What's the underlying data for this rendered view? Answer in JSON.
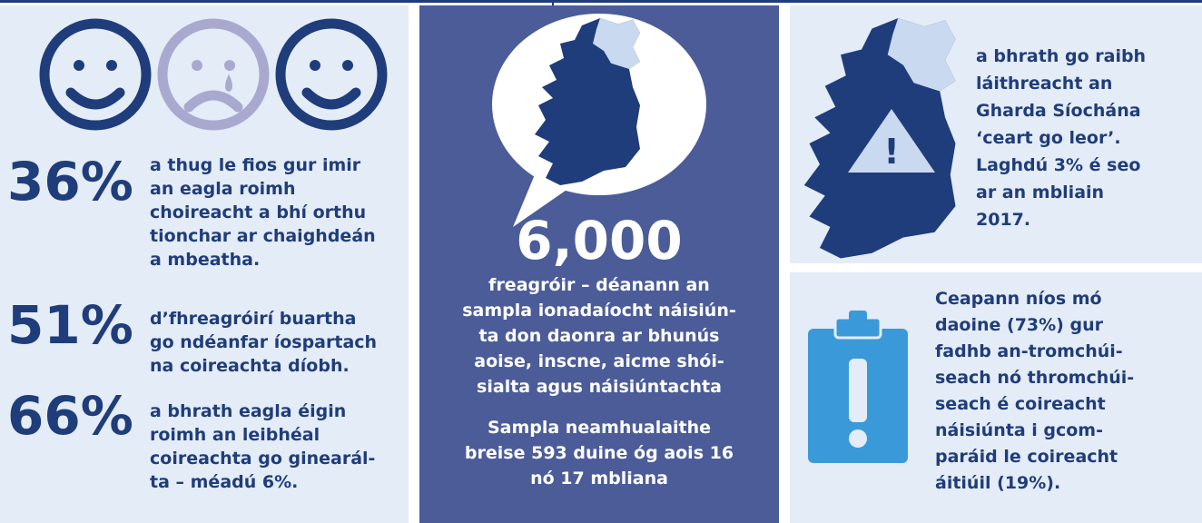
{
  "left": {
    "stats": [
      {
        "value": "36%",
        "lines": [
          "a thug le fios gur imir",
          "an eagla roimh",
          "choireacht a bhí orthu",
          "tionchar ar chaighdeán",
          "a mbeatha."
        ]
      },
      {
        "value": "51%",
        "lines": [
          "d’fhreagróirí buartha",
          "go ndéanfar íospartach",
          "na coireachta díobh."
        ]
      },
      {
        "value": "66%",
        "lines": [
          "a bhrath eagla éigin",
          "roimh an leibhéal",
          "coireachta go ginearál-",
          "ta – méadú 6%."
        ]
      }
    ]
  },
  "center": {
    "number": "6,000",
    "lines": [
      "freagróir – déanann an",
      "sampla ionadaíocht náisiún-",
      "ta don daonra ar bhunús",
      "aoise, inscne, aicme shói-",
      "sialta agus náisiúntachta"
    ],
    "note_lines": [
      "Sampla neamhualaithe",
      "breise 593 duine óg aois 16",
      "nó 17 mbliana"
    ]
  },
  "right_top": {
    "lines": [
      "a bhrath go raibh",
      "láithreacht an",
      "Gharda Síochána",
      "‘ceart go leor’.",
      "Laghdú 3% é seo",
      "ar an mbliain",
      "2017."
    ],
    "icon": "!"
  },
  "right_bottom": {
    "lines": [
      "Ceapann níos mó",
      "daoine (73%) gur",
      "fadhb an-tromchúi-",
      "seach nó thromchúi-",
      "seach é coireacht",
      "náisiúnta i gcom-",
      "paráid le coireacht",
      "áitiúil (19%)."
    ]
  }
}
